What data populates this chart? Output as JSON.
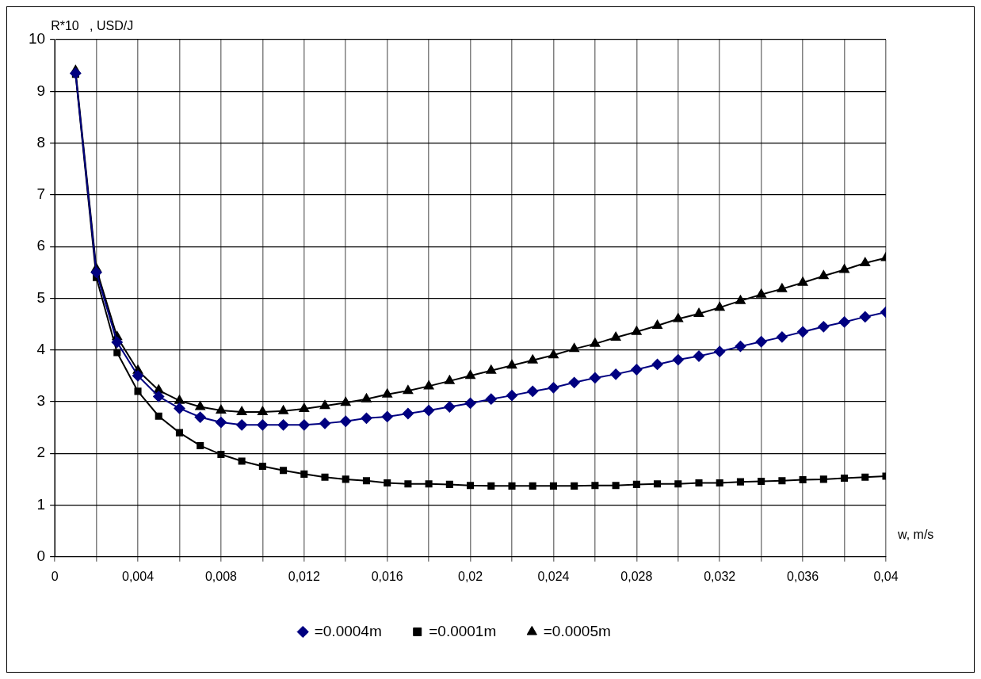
{
  "chart_data": {
    "type": "line",
    "ylabel": "R*10   , USD/J",
    "xlabel": "w, m/s",
    "x": [
      0.001,
      0.002,
      0.003,
      0.004,
      0.005,
      0.006,
      0.007,
      0.008,
      0.009,
      0.01,
      0.011,
      0.012,
      0.013,
      0.014,
      0.015,
      0.016,
      0.017,
      0.018,
      0.019,
      0.02,
      0.021,
      0.022,
      0.023,
      0.024,
      0.025,
      0.026,
      0.027,
      0.028,
      0.029,
      0.03,
      0.031,
      0.032,
      0.033,
      0.034,
      0.035,
      0.036,
      0.037,
      0.038,
      0.039,
      0.04
    ],
    "series": [
      {
        "name": "=0.0004m",
        "color": "#000080",
        "marker": "diamond",
        "values": [
          9.35,
          5.5,
          4.15,
          3.5,
          3.1,
          2.87,
          2.7,
          2.6,
          2.55,
          2.55,
          2.55,
          2.55,
          2.58,
          2.62,
          2.68,
          2.71,
          2.77,
          2.83,
          2.9,
          2.97,
          3.05,
          3.12,
          3.2,
          3.27,
          3.37,
          3.46,
          3.53,
          3.62,
          3.72,
          3.81,
          3.88,
          3.97,
          4.07,
          4.16,
          4.25,
          4.35,
          4.45,
          4.54,
          4.64,
          4.73
        ]
      },
      {
        "name": "=0.0001m",
        "color": "#000000",
        "marker": "square",
        "values": [
          9.33,
          5.4,
          3.95,
          3.2,
          2.72,
          2.4,
          2.15,
          1.98,
          1.85,
          1.75,
          1.67,
          1.6,
          1.54,
          1.5,
          1.47,
          1.43,
          1.41,
          1.41,
          1.4,
          1.38,
          1.37,
          1.37,
          1.37,
          1.37,
          1.37,
          1.38,
          1.38,
          1.4,
          1.41,
          1.41,
          1.43,
          1.43,
          1.45,
          1.46,
          1.47,
          1.49,
          1.5,
          1.52,
          1.54,
          1.56
        ]
      },
      {
        "name": "=0.0005m",
        "color": "#000000",
        "marker": "triangle",
        "values": [
          9.4,
          5.57,
          4.25,
          3.6,
          3.22,
          3.02,
          2.9,
          2.83,
          2.8,
          2.8,
          2.82,
          2.86,
          2.92,
          2.98,
          3.05,
          3.14,
          3.21,
          3.3,
          3.4,
          3.5,
          3.6,
          3.7,
          3.8,
          3.9,
          4.02,
          4.12,
          4.24,
          4.35,
          4.47,
          4.6,
          4.7,
          4.82,
          4.95,
          5.07,
          5.18,
          5.3,
          5.43,
          5.55,
          5.68,
          5.78
        ]
      }
    ],
    "xlim": [
      0,
      0.04
    ],
    "xticks": [
      0,
      {
        "value": 0.002,
        "label": null
      },
      {
        "value": 0.004,
        "label": "0,004"
      },
      {
        "value": 0.006,
        "label": null
      },
      {
        "value": 0.008,
        "label": "0,008"
      },
      {
        "value": 0.01,
        "label": null
      },
      {
        "value": 0.012,
        "label": "0,012"
      },
      {
        "value": 0.014,
        "label": null
      },
      {
        "value": 0.016,
        "label": "0,016"
      },
      {
        "value": 0.018,
        "label": null
      },
      {
        "value": 0.02,
        "label": "0,02"
      },
      {
        "value": 0.022,
        "label": null
      },
      {
        "value": 0.024,
        "label": "0,024"
      },
      {
        "value": 0.026,
        "label": null
      },
      {
        "value": 0.028,
        "label": "0,028"
      },
      {
        "value": 0.03,
        "label": null
      },
      {
        "value": 0.032,
        "label": "0,032"
      },
      {
        "value": 0.034,
        "label": null
      },
      {
        "value": 0.036,
        "label": "0,036"
      },
      {
        "value": 0.038,
        "label": null
      },
      {
        "value": 0.04,
        "label": "0,04"
      }
    ],
    "ylim": [
      0,
      10
    ],
    "yticks": [
      0,
      1,
      2,
      3,
      4,
      5,
      6,
      7,
      8,
      9,
      10
    ],
    "grid": true,
    "legend": "bottom",
    "line_style": "solid"
  }
}
